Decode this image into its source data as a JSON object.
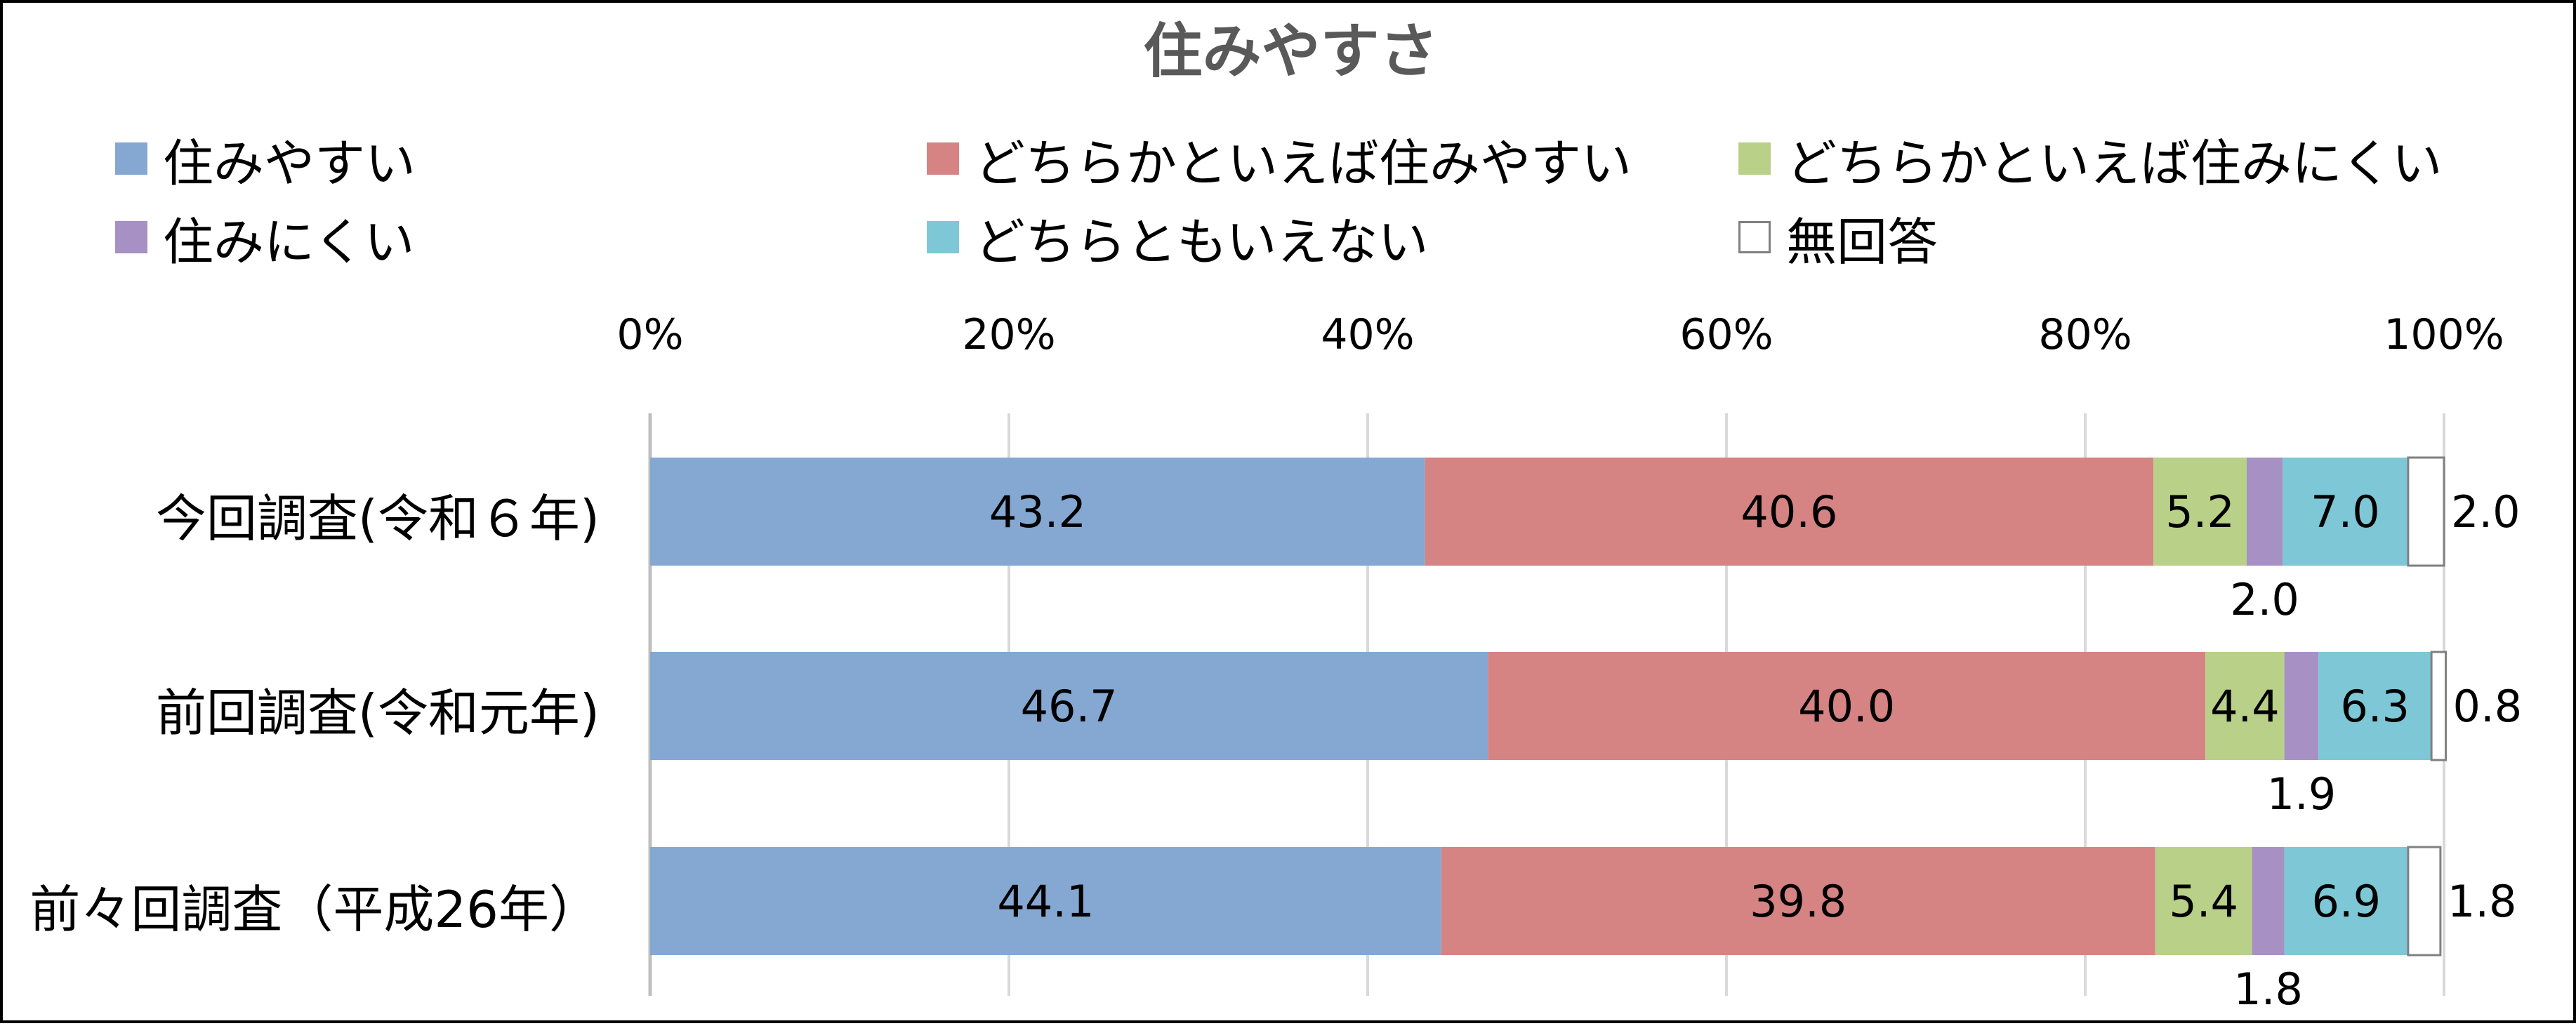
{
  "chart_data": {
    "type": "bar",
    "orientation": "horizontal",
    "stacked": true,
    "title": "住みやすさ",
    "xlim": [
      0,
      100
    ],
    "x_ticks": [
      "0%",
      "20%",
      "40%",
      "60%",
      "80%",
      "100%"
    ],
    "grid": true,
    "legend_position": "top",
    "categories": [
      "今回調査(令和６年)",
      "前回調査(令和元年)",
      "前々回調査（平成26年）"
    ],
    "series": [
      {
        "name": "住みやすい",
        "color": "#85A8D3",
        "values": [
          43.2,
          46.7,
          44.1
        ]
      },
      {
        "name": "どちらかといえば住みやすい",
        "color": "#D68383",
        "values": [
          40.6,
          40.0,
          39.8
        ]
      },
      {
        "name": "どちらかといえば住みにくい",
        "color": "#B9D088",
        "values": [
          5.2,
          4.4,
          5.4
        ]
      },
      {
        "name": "住みにくい",
        "color": "#A690C4",
        "values": [
          2.0,
          1.9,
          1.8
        ]
      },
      {
        "name": "どちらともいえない",
        "color": "#7EC7D6",
        "values": [
          7.0,
          6.3,
          6.9
        ]
      },
      {
        "name": "無回答",
        "color": "#FFFFFF",
        "values": [
          2.0,
          0.8,
          1.8
        ]
      }
    ],
    "data_labels": [
      [
        "43.2",
        "40.6",
        "5.2",
        "2.0",
        "7.0",
        "2.0"
      ],
      [
        "46.7",
        "40.0",
        "4.4",
        "1.9",
        "6.3",
        "0.8"
      ],
      [
        "44.1",
        "39.8",
        "5.4",
        "1.8",
        "6.9",
        "1.8"
      ]
    ]
  }
}
